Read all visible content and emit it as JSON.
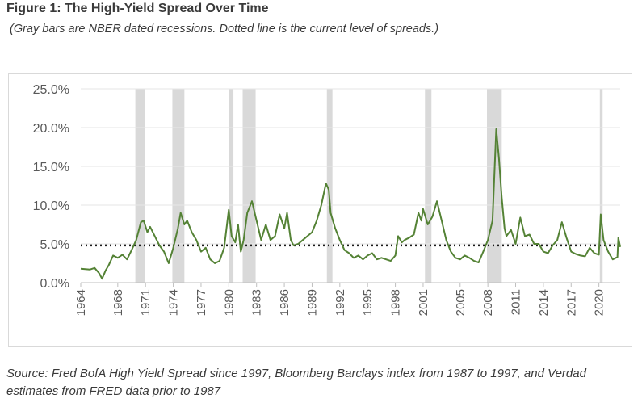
{
  "chart_data": {
    "type": "line",
    "title": "Figure 1: The High-Yield Spread Over Time",
    "subtitle": "(Gray bars are NBER dated recessions. Dotted line is the current level of spreads.)",
    "source": "Source: Fred BofA High Yield Spread since 1997, Bloomberg Barclays index from 1987 to 1997, and Verdad estimates from FRED data prior to 1987",
    "xlim": [
      1964,
      2022.3
    ],
    "xticks": [
      1964,
      1968,
      1971,
      1974,
      1977,
      1980,
      1983,
      1986,
      1989,
      1992,
      1995,
      1998,
      2001,
      2005,
      2008,
      2011,
      2014,
      2017,
      2020
    ],
    "ylim": [
      0,
      25
    ],
    "yticks": [
      {
        "value": 0,
        "label": "0.0%"
      },
      {
        "value": 5,
        "label": "5.0%"
      },
      {
        "value": 10,
        "label": "10.0%"
      },
      {
        "value": 15,
        "label": "15.0%"
      },
      {
        "value": 20,
        "label": "20.0%"
      },
      {
        "value": 25,
        "label": "25.0%"
      }
    ],
    "grid": true,
    "recessions": [
      [
        1969.9,
        1970.9
      ],
      [
        1973.9,
        1975.2
      ],
      [
        1980.0,
        1980.5
      ],
      [
        1981.5,
        1982.9
      ],
      [
        1990.6,
        1991.2
      ],
      [
        2001.2,
        2001.9
      ],
      [
        2007.9,
        2009.5
      ],
      [
        2020.1,
        2020.4
      ]
    ],
    "recession_color": "#d9d9d9",
    "reference_value": 4.8,
    "reference_color": "#1a1a1a",
    "series": [
      {
        "color": "#548235",
        "x": [
          1964,
          1965,
          1965.5,
          1966,
          1966.3,
          1966.7,
          1967,
          1967.5,
          1968,
          1968.5,
          1969,
          1969.5,
          1970,
          1970.5,
          1970.8,
          1971.2,
          1971.5,
          1972,
          1972.5,
          1973,
          1973.5,
          1974,
          1974.5,
          1974.8,
          1975.2,
          1975.5,
          1976,
          1976.5,
          1977,
          1977.5,
          1978,
          1978.5,
          1979,
          1979.5,
          1980,
          1980.3,
          1980.7,
          1981,
          1981.3,
          1981.6,
          1982,
          1982.5,
          1983,
          1983.5,
          1984,
          1984.5,
          1985,
          1985.5,
          1986,
          1986.3,
          1986.7,
          1987,
          1987.5,
          1988,
          1988.5,
          1989,
          1989.5,
          1990,
          1990.5,
          1990.8,
          1991,
          1991.5,
          1992,
          1992.5,
          1993,
          1993.5,
          1994,
          1994.5,
          1995,
          1995.5,
          1996,
          1996.5,
          1997,
          1997.5,
          1998,
          1998.3,
          1998.7,
          1999,
          1999.5,
          2000,
          2000.5,
          2000.8,
          2001,
          2001.5,
          2002,
          2002.5,
          2003,
          2003.5,
          2004,
          2004.5,
          2005,
          2005.5,
          2006,
          2006.5,
          2007,
          2007.5,
          2008,
          2008.5,
          2008.9,
          2009.2,
          2009.5,
          2009.8,
          2010,
          2010.5,
          2011,
          2011.5,
          2012,
          2012.5,
          2013,
          2013.5,
          2014,
          2014.5,
          2015,
          2015.5,
          2016,
          2016.5,
          2017,
          2017.5,
          2018,
          2018.5,
          2019,
          2019.5,
          2020,
          2020.2,
          2020.5,
          2021,
          2021.5,
          2022,
          2022.1,
          2022.3
        ],
        "values": [
          1.8,
          1.7,
          1.9,
          1.2,
          0.5,
          1.6,
          2.2,
          3.5,
          3.2,
          3.6,
          3.0,
          4.2,
          5.5,
          7.8,
          8.0,
          6.5,
          7.2,
          6.0,
          4.8,
          4.0,
          2.5,
          4.5,
          7.0,
          9.0,
          7.5,
          8.0,
          6.5,
          5.5,
          4.0,
          4.5,
          3.0,
          2.5,
          2.8,
          4.5,
          9.4,
          6.0,
          5.2,
          7.5,
          4.0,
          5.5,
          9.0,
          10.5,
          8.0,
          5.5,
          7.5,
          5.5,
          6.0,
          8.8,
          7.0,
          9.0,
          5.5,
          4.8,
          5.0,
          5.5,
          6.0,
          6.5,
          8.0,
          10.0,
          12.8,
          12.0,
          9.0,
          7.0,
          5.5,
          4.2,
          3.8,
          3.2,
          3.5,
          3.0,
          3.5,
          3.8,
          3.0,
          3.2,
          3.0,
          2.8,
          3.5,
          6.0,
          5.2,
          5.5,
          5.8,
          6.2,
          9.0,
          8.0,
          9.5,
          7.5,
          8.5,
          10.5,
          8.0,
          5.5,
          4.0,
          3.2,
          3.0,
          3.5,
          3.2,
          2.8,
          2.6,
          4.0,
          5.5,
          8.0,
          19.8,
          16.0,
          11.0,
          7.0,
          6.0,
          6.8,
          5.0,
          8.4,
          6.0,
          6.2,
          5.0,
          5.0,
          4.0,
          3.8,
          4.8,
          5.5,
          7.8,
          5.8,
          4.0,
          3.7,
          3.5,
          3.4,
          4.5,
          3.8,
          3.6,
          8.8,
          5.5,
          4.0,
          3.0,
          3.3,
          5.8,
          4.6
        ]
      }
    ]
  }
}
